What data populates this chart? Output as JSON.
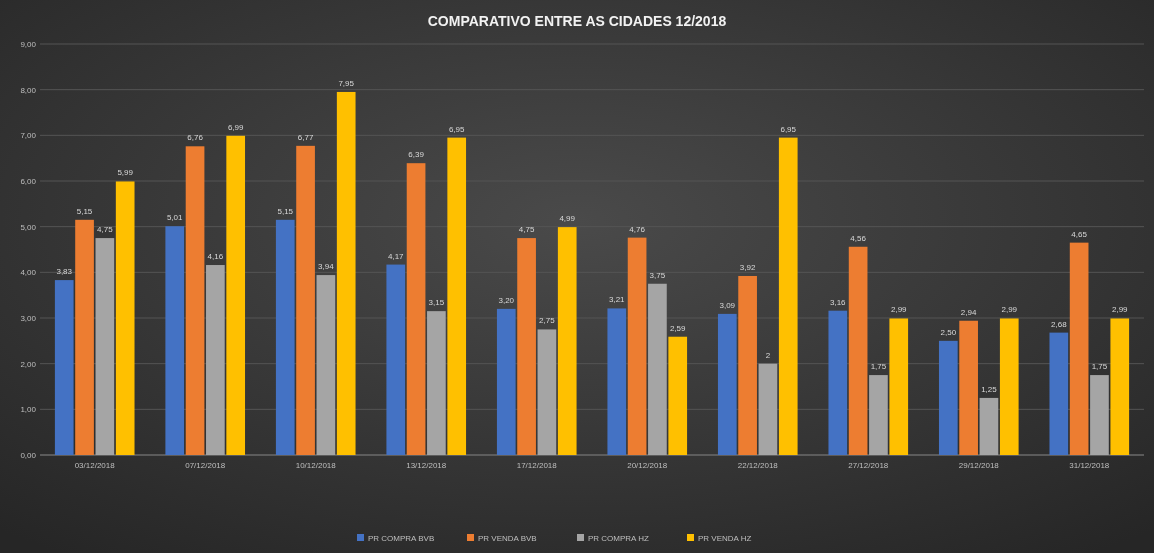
{
  "chart_data": {
    "type": "bar",
    "title": "COMPARATIVO ENTRE AS CIDADES 12/2018",
    "categories": [
      "03/12/2018",
      "07/12/2018",
      "10/12/2018",
      "13/12/2018",
      "17/12/2018",
      "20/12/2018",
      "22/12/2018",
      "27/12/2018",
      "29/12/2018",
      "31/12/2018"
    ],
    "series": [
      {
        "name": "PR COMPRA BVB",
        "color": "#4472c4",
        "values": [
          3.83,
          5.01,
          5.15,
          4.17,
          3.2,
          3.21,
          3.09,
          3.16,
          2.5,
          2.68
        ],
        "value_labels": [
          "3,83",
          "5,01",
          "5,15",
          "4,17",
          "3,20",
          "3,21",
          "3,09",
          "3,16",
          "2,50",
          "2,68"
        ]
      },
      {
        "name": "PR VENDA BVB",
        "color": "#ed7d31",
        "values": [
          5.15,
          6.76,
          6.77,
          6.39,
          4.75,
          4.76,
          3.92,
          4.56,
          2.94,
          4.65
        ],
        "value_labels": [
          "5,15",
          "6,76",
          "6,77",
          "6,39",
          "4,75",
          "4,76",
          "3,92",
          "4,56",
          "2,94",
          "4,65"
        ]
      },
      {
        "name": "PR COMPRA HZ",
        "color": "#a5a5a5",
        "values": [
          4.75,
          4.16,
          3.94,
          3.15,
          2.75,
          3.75,
          2,
          1.75,
          1.25,
          1.75
        ],
        "value_labels": [
          "4,75",
          "4,16",
          "3,94",
          "3,15",
          "2,75",
          "3,75",
          "2",
          "1,75",
          "1,25",
          "1,75"
        ]
      },
      {
        "name": "PR VENDA HZ",
        "color": "#ffc000",
        "values": [
          5.99,
          6.99,
          7.95,
          6.95,
          4.99,
          2.59,
          6.95,
          2.99,
          2.99,
          2.99
        ],
        "value_labels": [
          "5,99",
          "6,99",
          "7,95",
          "6,95",
          "4,99",
          "2,59",
          "6,95",
          "2,99",
          "2,99",
          "2,99"
        ]
      }
    ],
    "ylim": [
      0,
      9
    ],
    "yticks": [
      {
        "value": 0,
        "label": "0,00"
      },
      {
        "value": 1,
        "label": "1,00"
      },
      {
        "value": 2,
        "label": "2,00"
      },
      {
        "value": 3,
        "label": "3,00"
      },
      {
        "value": 4,
        "label": "4,00"
      },
      {
        "value": 5,
        "label": "5,00"
      },
      {
        "value": 6,
        "label": "6,00"
      },
      {
        "value": 7,
        "label": "7,00"
      },
      {
        "value": 8,
        "label": "8,00"
      },
      {
        "value": 9,
        "label": "9,00"
      }
    ],
    "grid": "y",
    "legend": "bottom"
  }
}
